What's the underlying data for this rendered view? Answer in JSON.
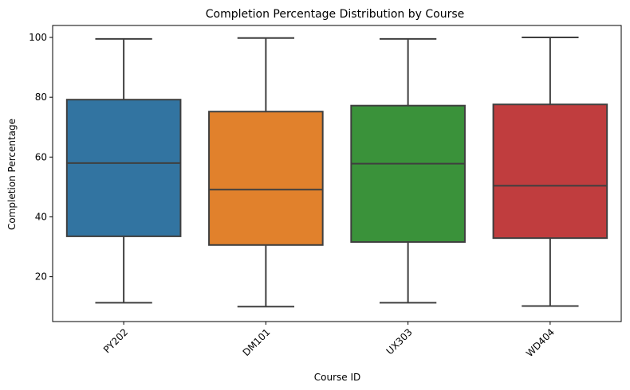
{
  "chart_data": {
    "type": "box",
    "title": "Completion Percentage Distribution by Course",
    "xlabel": "Course ID",
    "ylabel": "Completion Percentage",
    "ylim": [
      5,
      104
    ],
    "yticks": [
      20,
      40,
      60,
      80,
      100
    ],
    "grid": false,
    "categories": [
      "PY202",
      "DM101",
      "UX303",
      "WD404"
    ],
    "boxes": [
      {
        "category": "PY202",
        "min": 11.3,
        "q1": 33.5,
        "median": 58.0,
        "q3": 79.2,
        "max": 99.5,
        "color": "#3274a1"
      },
      {
        "category": "DM101",
        "min": 10.0,
        "q1": 30.6,
        "median": 49.1,
        "q3": 75.2,
        "max": 99.8,
        "color": "#e1812c"
      },
      {
        "category": "UX303",
        "min": 11.3,
        "q1": 31.6,
        "median": 57.8,
        "q3": 77.2,
        "max": 99.5,
        "color": "#3a923a"
      },
      {
        "category": "WD404",
        "min": 10.2,
        "q1": 32.9,
        "median": 50.4,
        "q3": 77.6,
        "max": 100.0,
        "color": "#c03d3e"
      }
    ]
  }
}
